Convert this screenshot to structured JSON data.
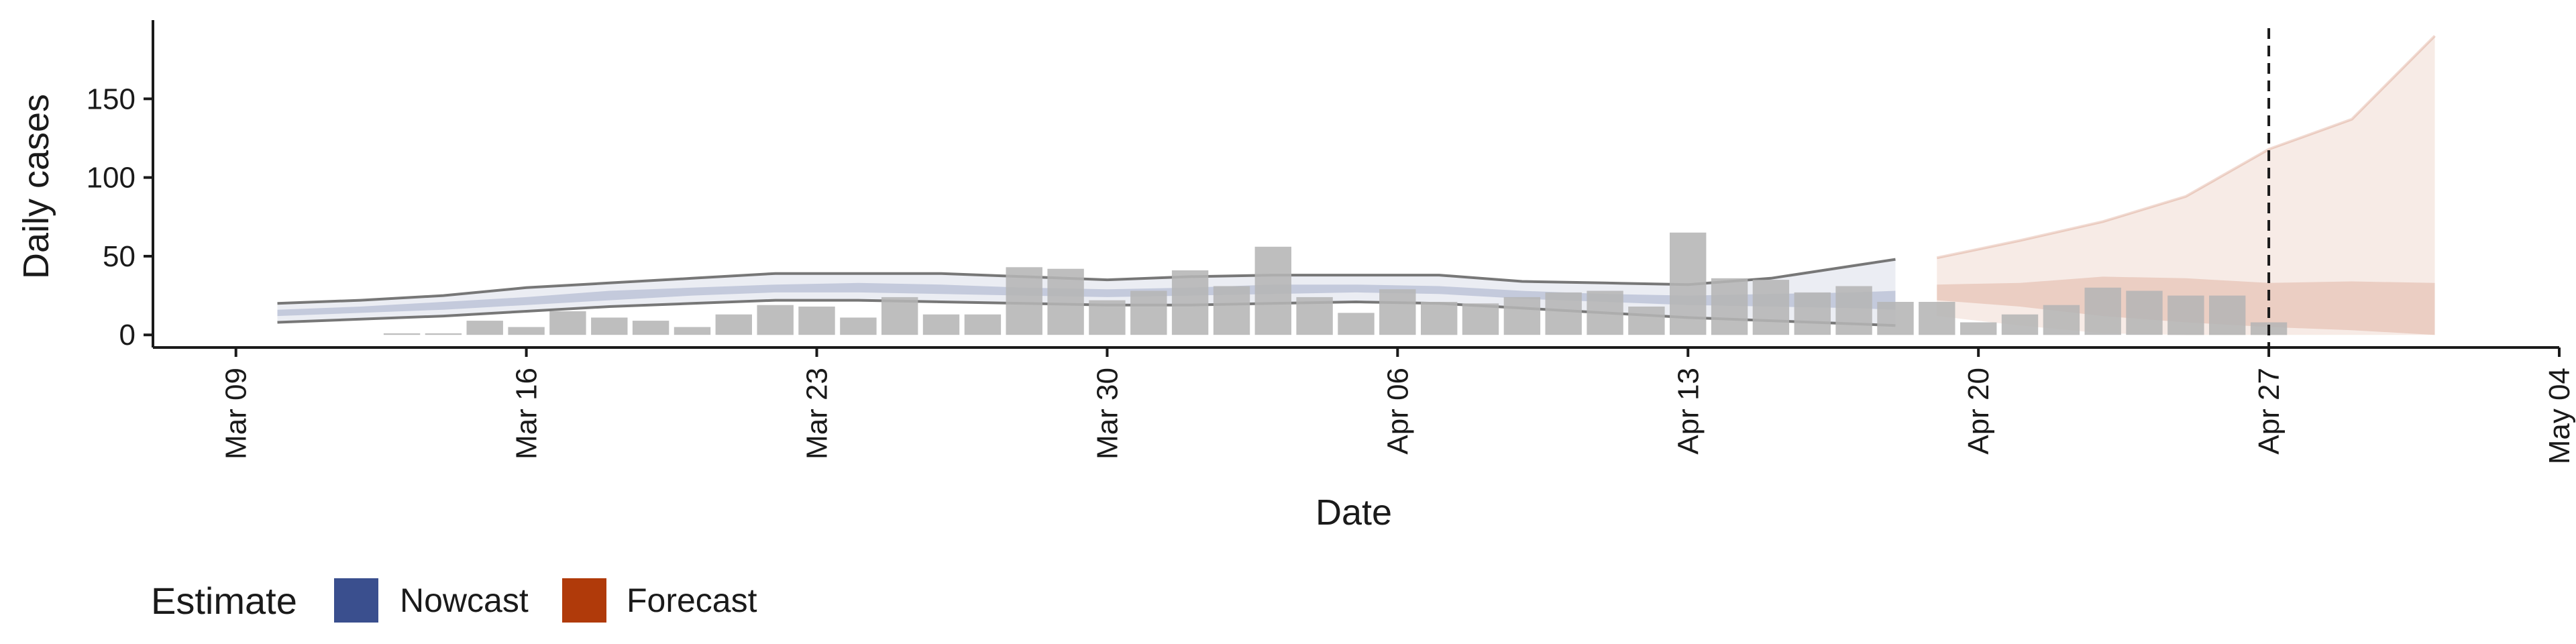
{
  "chart_data": {
    "type": "bar",
    "title": "",
    "xlabel": "Date",
    "ylabel": "Daily cases",
    "x_ticks": [
      "Mar 09",
      "Mar 16",
      "Mar 23",
      "Mar 30",
      "Apr 06",
      "Apr 13",
      "Apr 20",
      "Apr 27",
      "May 04"
    ],
    "x_range": [
      "2020-03-07",
      "2020-05-04"
    ],
    "y_ticks": [
      0,
      50,
      100,
      150
    ],
    "ylim": [
      -8,
      200
    ],
    "grid": false,
    "estimate_date": "2020-04-27",
    "series": [
      {
        "type": "bar",
        "x": [
          "2020-03-13",
          "2020-03-14",
          "2020-03-15",
          "2020-03-16",
          "2020-03-17",
          "2020-03-18",
          "2020-03-19",
          "2020-03-20",
          "2020-03-21",
          "2020-03-22",
          "2020-03-23",
          "2020-03-24",
          "2020-03-25",
          "2020-03-26",
          "2020-03-27",
          "2020-03-28",
          "2020-03-29",
          "2020-03-30",
          "2020-03-31",
          "2020-04-01",
          "2020-04-02",
          "2020-04-03",
          "2020-04-04",
          "2020-04-05",
          "2020-04-06",
          "2020-04-07",
          "2020-04-08",
          "2020-04-09",
          "2020-04-10",
          "2020-04-11",
          "2020-04-12",
          "2020-04-13",
          "2020-04-14",
          "2020-04-15",
          "2020-04-16",
          "2020-04-17",
          "2020-04-18",
          "2020-04-19",
          "2020-04-20",
          "2020-04-21",
          "2020-04-22",
          "2020-04-23",
          "2020-04-24",
          "2020-04-25",
          "2020-04-26",
          "2020-04-27"
        ],
        "values": [
          1,
          1,
          9,
          5,
          15,
          11,
          9,
          5,
          13,
          19,
          18,
          11,
          24,
          13,
          13,
          43,
          42,
          22,
          28,
          41,
          31,
          56,
          24,
          14,
          29,
          21,
          20,
          24,
          27,
          28,
          18,
          65,
          36,
          35,
          27,
          31,
          21,
          21,
          8,
          13,
          19,
          30,
          28,
          25,
          25,
          8
        ]
      },
      {
        "type": "band",
        "name": "Nowcast",
        "x": [
          "2020-03-10",
          "2020-03-12",
          "2020-03-14",
          "2020-03-16",
          "2020-03-18",
          "2020-03-20",
          "2020-03-22",
          "2020-03-24",
          "2020-03-26",
          "2020-03-28",
          "2020-03-30",
          "2020-04-01",
          "2020-04-03",
          "2020-04-05",
          "2020-04-07",
          "2020-04-09",
          "2020-04-11",
          "2020-04-13",
          "2020-04-15",
          "2020-04-17",
          "2020-04-18"
        ],
        "lower90": [
          8,
          10,
          12,
          15,
          18,
          20,
          22,
          22,
          21,
          20,
          19,
          19,
          20,
          21,
          20,
          17,
          14,
          11,
          9,
          7,
          6
        ],
        "upper90": [
          20,
          22,
          25,
          30,
          33,
          36,
          39,
          39,
          39,
          37,
          35,
          37,
          38,
          38,
          38,
          34,
          33,
          32,
          36,
          44,
          48
        ],
        "lower50": [
          12,
          14,
          16,
          19,
          22,
          25,
          27,
          27,
          26,
          25,
          24,
          25,
          26,
          27,
          26,
          23,
          21,
          19,
          18,
          17,
          16
        ],
        "upper50": [
          16,
          18,
          21,
          24,
          28,
          30,
          32,
          33,
          32,
          30,
          29,
          30,
          32,
          32,
          31,
          28,
          26,
          25,
          26,
          27,
          28
        ]
      },
      {
        "type": "band",
        "name": "Forecast",
        "x": [
          "2020-04-19",
          "2020-04-21",
          "2020-04-23",
          "2020-04-25",
          "2020-04-27",
          "2020-04-29",
          "2020-05-01"
        ],
        "lower90": [
          12,
          6,
          1,
          0,
          0,
          0,
          0
        ],
        "upper90": [
          49,
          60,
          72,
          88,
          118,
          137,
          190
        ],
        "lower50": [
          22,
          18,
          12,
          8,
          5,
          3,
          0
        ],
        "upper50": [
          32,
          33,
          37,
          36,
          33,
          34,
          33
        ]
      }
    ],
    "legend": {
      "title": "Estimate",
      "placement": "bottom-left",
      "entries": [
        {
          "label": "Nowcast",
          "color": "#3a4f8e"
        },
        {
          "label": "Forecast",
          "color": "#b03a0a"
        }
      ]
    },
    "colors": {
      "bars": "#b5b5b5",
      "nowcast": "#3a4f8e",
      "forecast": "#b03a0a",
      "band_edge": "#777777",
      "estimate_line": "#1a1a1a"
    }
  }
}
